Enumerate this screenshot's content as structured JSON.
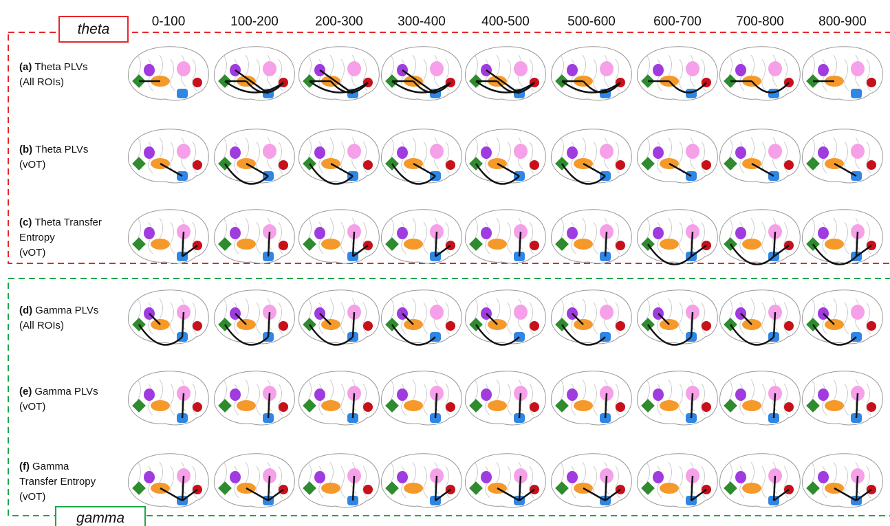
{
  "columns": [
    "0-100",
    "100-200",
    "200-300",
    "300-400",
    "400-500",
    "500-600",
    "600-700",
    "700-800",
    "800-900"
  ],
  "groups": {
    "theta": "theta",
    "gamma": "gamma"
  },
  "rows": [
    {
      "tag": "(a)",
      "lines": [
        "Theta PLVs",
        "(All ROIs)"
      ]
    },
    {
      "tag": "(b)",
      "lines": [
        "Theta PLVs",
        "(vOT)"
      ]
    },
    {
      "tag": "(c)",
      "lines": [
        "Theta Transfer",
        "Entropy",
        "(vOT)"
      ]
    },
    {
      "tag": "(d)",
      "lines": [
        "Gamma PLVs",
        "(All ROIs)"
      ]
    },
    {
      "tag": "(e)",
      "lines": [
        "Gamma PLVs",
        "(vOT)"
      ]
    },
    {
      "tag": "(f)",
      "lines": [
        "Gamma",
        "Transfer Entropy",
        "(vOT)"
      ]
    }
  ]
}
